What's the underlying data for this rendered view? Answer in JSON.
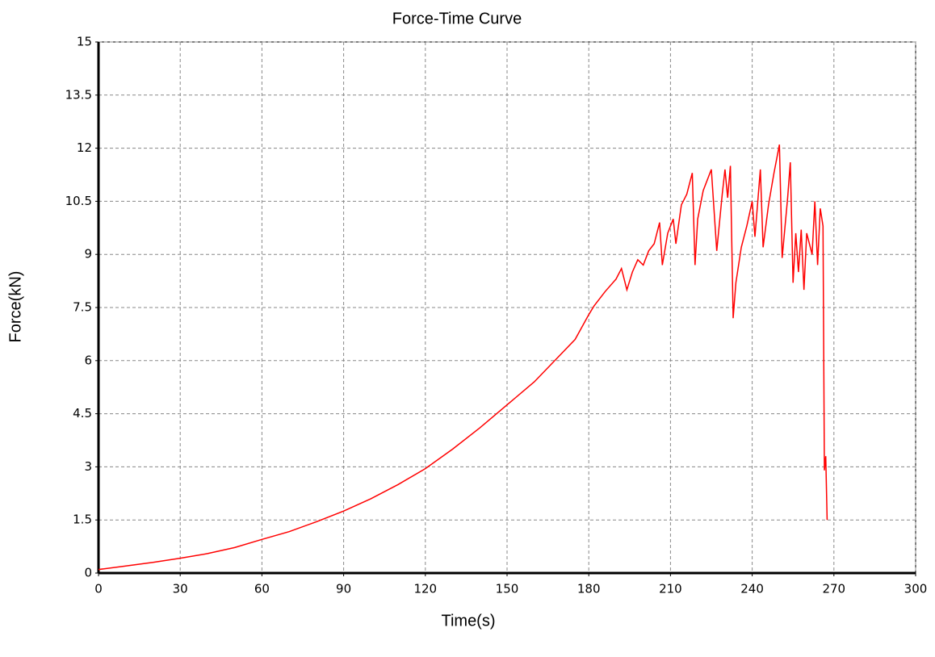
{
  "chart_data": {
    "type": "line",
    "title": "Force-Time Curve",
    "x_label": "Time(s)",
    "y_label": "Force(kN)",
    "x": [
      0,
      10,
      20,
      30,
      40,
      50,
      60,
      70,
      80,
      90,
      100,
      110,
      120,
      130,
      140,
      150,
      160,
      170,
      175,
      180,
      182,
      186,
      190,
      192,
      194,
      196,
      198,
      200,
      202,
      204,
      206,
      207,
      209,
      211,
      212,
      214,
      216,
      218,
      219,
      220,
      222,
      225,
      227,
      229,
      230,
      231,
      232,
      233,
      234,
      236,
      238,
      240,
      241,
      243,
      244,
      246,
      248,
      250,
      251,
      253,
      254,
      255,
      256,
      257,
      258,
      259,
      260,
      262,
      263,
      264,
      265,
      266,
      266.5,
      267,
      267.5
    ],
    "series": [
      {
        "name": "Force",
        "color": "#ff0000",
        "values": [
          0.1,
          0.2,
          0.3,
          0.42,
          0.55,
          0.72,
          0.95,
          1.17,
          1.45,
          1.75,
          2.1,
          2.5,
          2.95,
          3.5,
          4.1,
          4.75,
          5.4,
          6.2,
          6.6,
          7.3,
          7.55,
          7.95,
          8.3,
          8.6,
          8.0,
          8.5,
          8.85,
          8.7,
          9.1,
          9.3,
          9.9,
          8.7,
          9.6,
          10.0,
          9.3,
          10.4,
          10.7,
          11.3,
          8.7,
          10.0,
          10.8,
          11.4,
          9.1,
          10.7,
          11.4,
          10.6,
          11.5,
          7.2,
          8.2,
          9.2,
          9.8,
          10.5,
          9.5,
          11.4,
          9.2,
          10.4,
          11.3,
          12.1,
          8.9,
          10.6,
          11.6,
          8.2,
          9.6,
          8.5,
          9.7,
          8.0,
          9.6,
          9.0,
          10.5,
          8.7,
          10.3,
          9.8,
          2.9,
          3.3,
          1.5
        ]
      }
    ],
    "xlim": [
      0,
      300
    ],
    "xticks": [
      0,
      30,
      60,
      90,
      120,
      150,
      180,
      210,
      240,
      270,
      300
    ],
    "ylim": [
      0,
      15
    ],
    "yticks": [
      0,
      1.5,
      3,
      4.5,
      6,
      7.5,
      9,
      10.5,
      12,
      13.5,
      15
    ],
    "grid": true
  }
}
